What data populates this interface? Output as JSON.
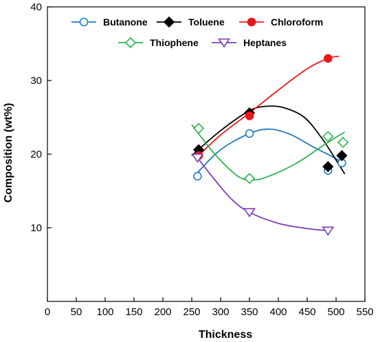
{
  "chart_data": {
    "type": "scatter",
    "title": "",
    "xlabel": "Thickness",
    "ylabel": "Composition (wt%)",
    "xlim": [
      0,
      550
    ],
    "ylim": [
      0,
      40
    ],
    "xticks": [
      0,
      50,
      100,
      150,
      200,
      250,
      300,
      350,
      400,
      450,
      500,
      550
    ],
    "yticks": [
      10,
      20,
      30,
      40
    ],
    "grid": false,
    "legend_position": "top",
    "series": [
      {
        "name": "Butanone",
        "color": "#1f77c4",
        "marker": "circle-open",
        "points": [
          [
            260,
            17
          ],
          [
            350,
            22.8
          ],
          [
            486,
            17.8
          ],
          [
            510,
            18.8
          ]
        ],
        "fit_curve": [
          [
            260,
            17.5
          ],
          [
            300,
            20.6
          ],
          [
            350,
            22.8
          ],
          [
            385,
            23.4
          ],
          [
            420,
            22.7
          ],
          [
            460,
            21
          ],
          [
            490,
            19.8
          ],
          [
            515,
            18.7
          ]
        ]
      },
      {
        "name": "Toluene",
        "color": "#000000",
        "marker": "diamond-filled",
        "points": [
          [
            262,
            20.6
          ],
          [
            350,
            25.6
          ],
          [
            486,
            18.3
          ],
          [
            510,
            19.8
          ]
        ],
        "fit_curve": [
          [
            250,
            19.8
          ],
          [
            300,
            23.2
          ],
          [
            350,
            25.9
          ],
          [
            380,
            26.5
          ],
          [
            410,
            26.3
          ],
          [
            445,
            25
          ],
          [
            475,
            22.2
          ],
          [
            500,
            19.2
          ],
          [
            515,
            17.3
          ]
        ]
      },
      {
        "name": "Chloroform",
        "color": "#e8191b",
        "marker": "circle-filled",
        "points": [
          [
            262,
            19.8
          ],
          [
            350,
            25.2
          ],
          [
            486,
            33
          ]
        ],
        "fit_curve": [
          [
            262,
            19.8
          ],
          [
            300,
            22.6
          ],
          [
            350,
            25.6
          ],
          [
            400,
            28.7
          ],
          [
            450,
            31.6
          ],
          [
            486,
            33
          ],
          [
            505,
            33.3
          ]
        ]
      },
      {
        "name": "Thiophene",
        "color": "#2eb24e",
        "marker": "diamond-open",
        "points": [
          [
            262,
            23.5
          ],
          [
            350,
            16.7
          ],
          [
            486,
            22.4
          ],
          [
            512,
            21.6
          ]
        ],
        "fit_curve": [
          [
            250,
            24
          ],
          [
            290,
            20
          ],
          [
            330,
            17
          ],
          [
            355,
            16.5
          ],
          [
            380,
            16.9
          ],
          [
            430,
            18.7
          ],
          [
            480,
            21.3
          ],
          [
            515,
            23
          ]
        ]
      },
      {
        "name": "Heptanes",
        "color": "#7a3db8",
        "marker": "triangle-open",
        "points": [
          [
            260,
            19.5
          ],
          [
            350,
            12.1
          ],
          [
            486,
            9.6
          ]
        ],
        "fit_curve": [
          [
            260,
            19.5
          ],
          [
            290,
            16.5
          ],
          [
            320,
            13.8
          ],
          [
            350,
            12.1
          ],
          [
            400,
            10.6
          ],
          [
            450,
            9.9
          ],
          [
            486,
            9.6
          ]
        ]
      }
    ]
  }
}
